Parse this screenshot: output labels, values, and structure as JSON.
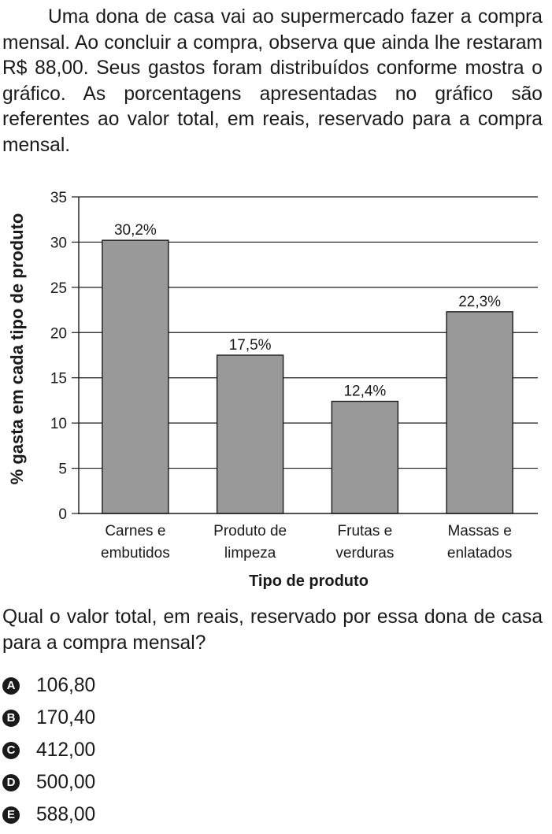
{
  "intro_text": "Uma dona de casa vai ao supermercado fazer a compra mensal. Ao concluir a compra, observa que ainda lhe restaram R$ 88,00. Seus gastos foram distribuídos conforme mostra o gráfico. As porcentagens apresentadas no gráfico são referentes ao valor total, em reais, reservado para a compra mensal.",
  "question_text": "Qual o valor total, em reais, reservado por essa dona de casa para a compra mensal?",
  "options": [
    {
      "letter": "A",
      "value": "106,80"
    },
    {
      "letter": "B",
      "value": "170,40"
    },
    {
      "letter": "C",
      "value": "412,00"
    },
    {
      "letter": "D",
      "value": "500,00"
    },
    {
      "letter": "E",
      "value": "588,00"
    }
  ],
  "chart_data": {
    "type": "bar",
    "categories": [
      [
        "Carnes e",
        "embutidos"
      ],
      [
        "Produto de",
        "limpeza"
      ],
      [
        "Frutas e",
        "verduras"
      ],
      [
        "Massas e",
        "enlatados"
      ]
    ],
    "values": [
      30.2,
      17.5,
      12.4,
      22.3
    ],
    "value_labels": [
      "30,2%",
      "17,5%",
      "12,4%",
      "22,3%"
    ],
    "xlabel": "Tipo de produto",
    "ylabel": "% gasta em cada tipo de produto",
    "ylim": [
      0,
      35
    ],
    "yticks": [
      0,
      5,
      10,
      15,
      20,
      25,
      30,
      35
    ],
    "grid": true,
    "bar_color": "#999999"
  }
}
